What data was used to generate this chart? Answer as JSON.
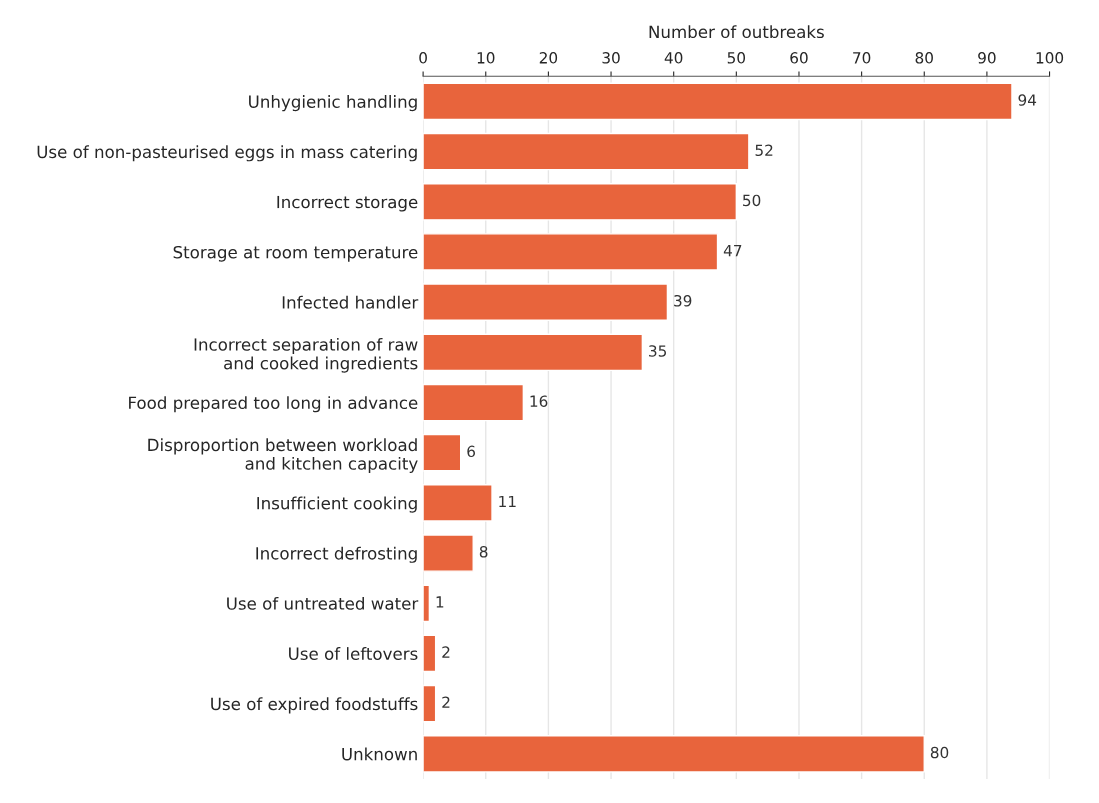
{
  "chart_data": {
    "type": "bar",
    "orientation": "horizontal",
    "xlabel": "Number of outbreaks",
    "categories": [
      "Unhygienic handling",
      "Use of non-pasteurised eggs in mass catering",
      "Incorrect storage",
      "Storage at room temperature",
      "Infected handler",
      "Incorrect separation of raw\nand cooked ingredients",
      "Food prepared too long in advance",
      "Disproportion between workload\nand kitchen capacity",
      "Insufficient cooking",
      "Incorrect defrosting",
      "Use of untreated water",
      "Use of leftovers",
      "Use of expired foodstuffs",
      "Unknown"
    ],
    "values": [
      94,
      52,
      50,
      47,
      39,
      35,
      16,
      6,
      11,
      8,
      1,
      2,
      2,
      80
    ],
    "color": "#e8643c",
    "xlim": [
      0,
      100
    ],
    "xticks": [
      0,
      10,
      20,
      30,
      40,
      50,
      60,
      70,
      80,
      90,
      100
    ],
    "grid": "x",
    "data_labels": true,
    "legend": false
  }
}
